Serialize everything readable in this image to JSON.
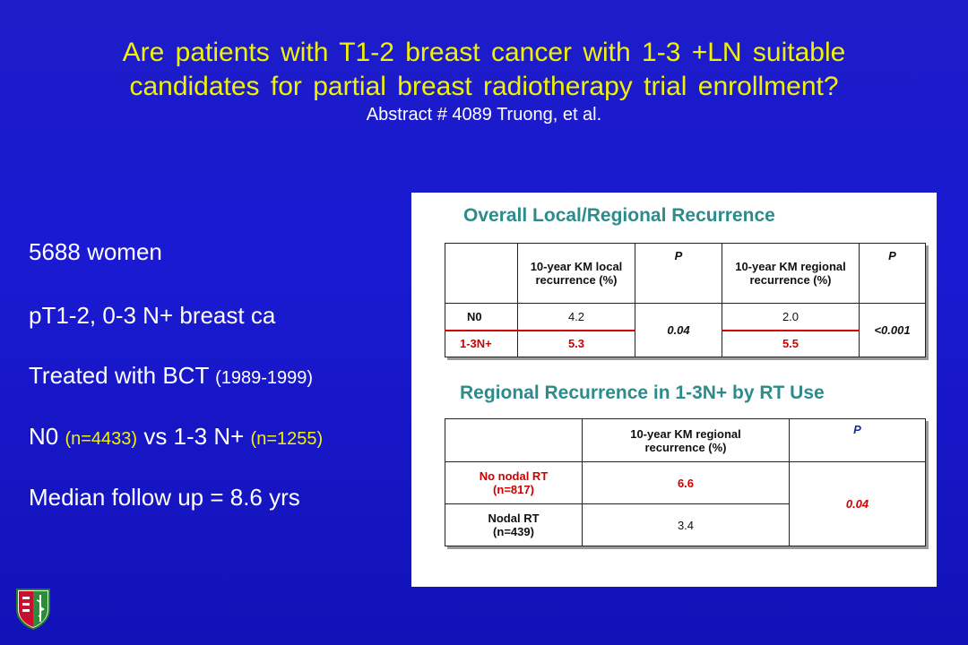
{
  "title": {
    "line1": "Are patients with T1-2 breast cancer with 1-3 +LN suitable",
    "line2": "candidates for partial breast radiotherapy trial enrollment?",
    "subtitle": "Abstract # 4089 Truong, et al."
  },
  "bullets": {
    "b1": "5688 women",
    "b2": "pT1-2, 0-3 N+ breast ca",
    "b3_main": "Treated with BCT ",
    "b3_small": "(1989-1999)",
    "b4_a": "N0 ",
    "b4_b": "(n=4433)",
    "b4_c": " vs 1-3 N+ ",
    "b4_d": "(n=1255)",
    "b5": "Median follow up = 8.6 yrs"
  },
  "table1": {
    "title": "Overall Local/Regional Recurrence",
    "header": {
      "col_blank": "",
      "col_local": "10-year KM local recurrence (%)",
      "col_p1": "P",
      "col_regional": "10-year KM regional recurrence (%)",
      "col_p2": "P"
    },
    "rows": [
      {
        "label": "N0",
        "local": "4.2",
        "regional": "2.0"
      },
      {
        "label": "1-3N+",
        "local": "5.3",
        "regional": "5.5"
      }
    ],
    "p_local": "0.04",
    "p_regional": "<0.001"
  },
  "table2": {
    "title": "Regional Recurrence in 1-3N+ by RT Use",
    "header": {
      "col_blank": "",
      "col_regional": "10-year KM regional recurrence (%)",
      "col_p": "P"
    },
    "rows": [
      {
        "label_line1": "No nodal RT",
        "label_line2": "(n=817)",
        "value": "6.6"
      },
      {
        "label_line1": "Nodal RT",
        "label_line2": "(n=439)",
        "value": "3.4"
      }
    ],
    "p_value": "0.04"
  },
  "colors": {
    "title_yellow": "#f2f200",
    "background_blue": "#1a1ad2",
    "table_title_teal": "#2e8b8b",
    "highlight_red": "#d00000",
    "p_header_blue": "#1a2aa0"
  },
  "logo": {
    "icon": "shield-logo-icon"
  }
}
